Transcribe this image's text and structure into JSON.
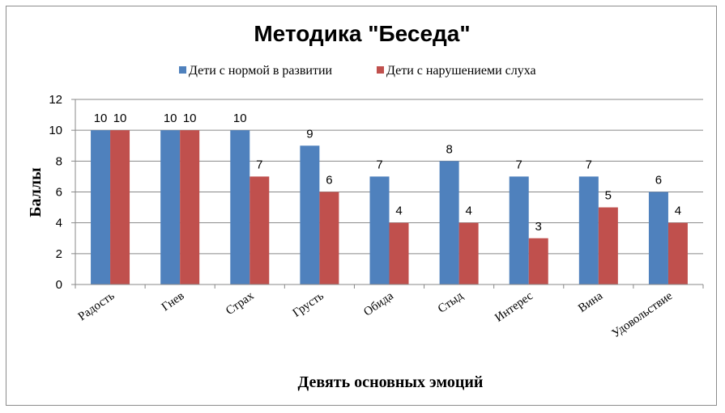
{
  "chart_data": {
    "type": "bar",
    "title": "Методика \"Беседа\"",
    "xlabel": "Девять основных эмоций",
    "ylabel": "Баллы",
    "ylim": [
      0,
      12
    ],
    "yticks": [
      0,
      2,
      4,
      6,
      8,
      10,
      12
    ],
    "grid": true,
    "legend": "top",
    "categories": [
      "Радость",
      "Гнев",
      "Страх",
      "Грусть",
      "Обида",
      "Стыд",
      "Интерес",
      "Вина",
      "Удовольствие"
    ],
    "series": [
      {
        "name": "Дети с нормой в развитии",
        "color": "#4f81bd",
        "values": [
          10,
          10,
          10,
          9,
          7,
          8,
          7,
          7,
          6
        ]
      },
      {
        "name": "Дети с нарушениеми слуха",
        "color": "#c0504d",
        "values": [
          10,
          10,
          7,
          6,
          4,
          4,
          3,
          5,
          4
        ]
      }
    ]
  }
}
